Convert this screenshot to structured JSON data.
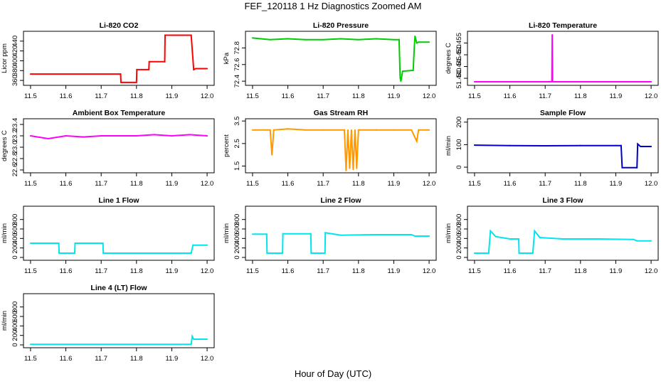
{
  "title": "FEF_120118  1 Hz Diagnostics Zoomed AM",
  "xlabel": "Hour of Day (UTC)",
  "chart_data": [
    {
      "type": "line",
      "title": "Li-820 CO2",
      "ylabel": "Licor ppm",
      "color": "#ff0000",
      "xlim": [
        11.48,
        12.02
      ],
      "ylim": [
        350,
        460
      ],
      "xticks": [
        "11.5",
        "11.6",
        "11.7",
        "11.8",
        "11.9",
        "12.0"
      ],
      "yticks": [
        "360",
        "380",
        "400",
        "420",
        "440"
      ],
      "x": [
        11.5,
        11.755,
        11.756,
        11.8,
        11.801,
        11.835,
        11.836,
        11.88,
        11.881,
        11.955,
        11.962,
        11.968,
        12.0
      ],
      "y": [
        373,
        373,
        356,
        356,
        382,
        382,
        398,
        398,
        452,
        452,
        382,
        384,
        384
      ]
    },
    {
      "type": "line",
      "title": "Li-820 Pressure",
      "ylabel": "kPa",
      "color": "#00cc00",
      "xlim": [
        11.48,
        12.02
      ],
      "ylim": [
        72.35,
        73.0
      ],
      "xticks": [
        "11.5",
        "11.6",
        "11.7",
        "11.8",
        "11.9",
        "12.0"
      ],
      "yticks": [
        "72.4",
        "72.6",
        "72.8"
      ],
      "x": [
        11.5,
        11.55,
        11.6,
        11.65,
        11.7,
        11.75,
        11.8,
        11.85,
        11.9,
        11.915,
        11.918,
        11.92,
        11.925,
        11.955,
        11.958,
        11.96,
        11.965,
        11.97,
        12.0
      ],
      "y": [
        72.92,
        72.9,
        72.91,
        72.9,
        72.9,
        72.91,
        72.9,
        72.91,
        72.9,
        72.9,
        72.44,
        72.4,
        72.52,
        72.53,
        72.8,
        72.94,
        72.86,
        72.87,
        72.87
      ]
    },
    {
      "type": "line",
      "title": "Li-820 Temperature",
      "ylabel": "degrees C",
      "color": "#ff00ff",
      "xlim": [
        11.48,
        12.02
      ],
      "ylim": [
        51.437,
        51.46
      ],
      "xticks": [
        "11.5",
        "11.6",
        "11.7",
        "11.8",
        "11.9",
        "12.0"
      ],
      "yticks": [
        "51.440",
        "51.445",
        "51.450",
        "51.455"
      ],
      "x": [
        11.5,
        11.719,
        11.72,
        11.721,
        12.0
      ],
      "y": [
        51.4385,
        51.4385,
        51.4585,
        51.4385,
        51.4385
      ]
    },
    {
      "type": "line",
      "title": "Ambient Box Temperature",
      "ylabel": "degrees C",
      "color": "#ff00ff",
      "xlim": [
        11.48,
        12.02
      ],
      "ylim": [
        22.55,
        23.5
      ],
      "xticks": [
        "11.5",
        "11.6",
        "11.7",
        "11.8",
        "11.9",
        "12.0"
      ],
      "yticks": [
        "22.6",
        "22.8",
        "23.0",
        "23.2",
        "23.4"
      ],
      "x": [
        11.5,
        11.55,
        11.6,
        11.65,
        11.7,
        11.75,
        11.8,
        11.85,
        11.9,
        11.95,
        12.0
      ],
      "y": [
        23.2,
        23.15,
        23.2,
        23.18,
        23.2,
        23.2,
        23.2,
        23.22,
        23.2,
        23.22,
        23.2
      ]
    },
    {
      "type": "line",
      "title": "Gas Stream RH",
      "ylabel": "percent",
      "color": "#ff9900",
      "xlim": [
        11.48,
        12.02
      ],
      "ylim": [
        1.2,
        3.6
      ],
      "xticks": [
        "11.5",
        "11.6",
        "11.7",
        "11.8",
        "11.9",
        "12.0"
      ],
      "yticks": [
        "1.5",
        "2.5",
        "3.5"
      ],
      "x": [
        11.5,
        11.55,
        11.555,
        11.56,
        11.6,
        11.65,
        11.7,
        11.76,
        11.765,
        11.77,
        11.775,
        11.78,
        11.785,
        11.79,
        11.795,
        11.8,
        11.85,
        11.9,
        11.95,
        11.965,
        11.97,
        12.0
      ],
      "y": [
        3.1,
        3.1,
        2.0,
        3.1,
        3.15,
        3.1,
        3.1,
        3.1,
        1.3,
        3.1,
        1.4,
        3.1,
        1.35,
        3.1,
        1.4,
        3.1,
        3.1,
        3.1,
        3.1,
        2.6,
        3.1,
        3.1
      ]
    },
    {
      "type": "line",
      "title": "Sample Flow",
      "ylabel": "ml/min",
      "color": "#0000cc",
      "xlim": [
        11.48,
        12.02
      ],
      "ylim": [
        -25,
        215
      ],
      "xticks": [
        "11.5",
        "11.6",
        "11.7",
        "11.8",
        "11.9",
        "12.0"
      ],
      "yticks": [
        "0",
        "100",
        "200"
      ],
      "x": [
        11.5,
        11.6,
        11.7,
        11.8,
        11.9,
        11.915,
        11.918,
        11.96,
        11.962,
        11.97,
        12.0
      ],
      "y": [
        98,
        96,
        95,
        96,
        96,
        96,
        -2,
        -2,
        103,
        92,
        92
      ]
    },
    {
      "type": "line",
      "title": "Line 1 Flow",
      "ylabel": "ml/min",
      "color": "#00e5ee",
      "xlim": [
        11.48,
        12.02
      ],
      "ylim": [
        -60,
        1080
      ],
      "xticks": [
        "11.5",
        "11.6",
        "11.7",
        "11.8",
        "11.9",
        "12.0"
      ],
      "yticks": [
        "0",
        "200",
        "400",
        "600",
        "800"
      ],
      "x": [
        11.5,
        11.58,
        11.581,
        11.625,
        11.626,
        11.705,
        11.706,
        11.955,
        11.96,
        12.0
      ],
      "y": [
        300,
        300,
        90,
        90,
        300,
        300,
        90,
        90,
        260,
        260
      ]
    },
    {
      "type": "line",
      "title": "Line 2 Flow",
      "ylabel": "ml/min",
      "color": "#00e5ee",
      "xlim": [
        11.48,
        12.02
      ],
      "ylim": [
        -60,
        1080
      ],
      "xticks": [
        "11.5",
        "11.6",
        "11.7",
        "11.8",
        "11.9",
        "12.0"
      ],
      "yticks": [
        "0",
        "200",
        "400",
        "600",
        "800"
      ],
      "x": [
        11.5,
        11.54,
        11.541,
        11.585,
        11.586,
        11.665,
        11.666,
        11.705,
        11.706,
        11.75,
        11.85,
        11.95,
        11.96,
        12.0
      ],
      "y": [
        490,
        490,
        90,
        90,
        500,
        500,
        90,
        90,
        520,
        470,
        480,
        480,
        450,
        450
      ]
    },
    {
      "type": "line",
      "title": "Line 3 Flow",
      "ylabel": "ml/min",
      "color": "#00e5ee",
      "xlim": [
        11.48,
        12.02
      ],
      "ylim": [
        -60,
        1080
      ],
      "xticks": [
        "11.5",
        "11.6",
        "11.7",
        "11.8",
        "11.9",
        "12.0"
      ],
      "yticks": [
        "0",
        "200",
        "400",
        "600",
        "800"
      ],
      "x": [
        11.5,
        11.54,
        11.545,
        11.56,
        11.6,
        11.625,
        11.626,
        11.665,
        11.67,
        11.685,
        11.75,
        11.85,
        11.95,
        11.96,
        12.0
      ],
      "y": [
        90,
        90,
        560,
        440,
        390,
        390,
        90,
        90,
        560,
        420,
        390,
        390,
        380,
        350,
        350
      ]
    },
    {
      "type": "line",
      "title": "Line 4 (LT) Flow",
      "ylabel": "ml/min",
      "color": "#00e5ee",
      "xlim": [
        11.48,
        12.02
      ],
      "ylim": [
        -60,
        1080
      ],
      "xticks": [
        "11.5",
        "11.6",
        "11.7",
        "11.8",
        "11.9",
        "12.0"
      ],
      "yticks": [
        "0",
        "200",
        "400",
        "600",
        "800"
      ],
      "x": [
        11.5,
        11.955,
        11.958,
        11.962,
        12.0
      ],
      "y": [
        10,
        10,
        180,
        120,
        120
      ]
    }
  ]
}
